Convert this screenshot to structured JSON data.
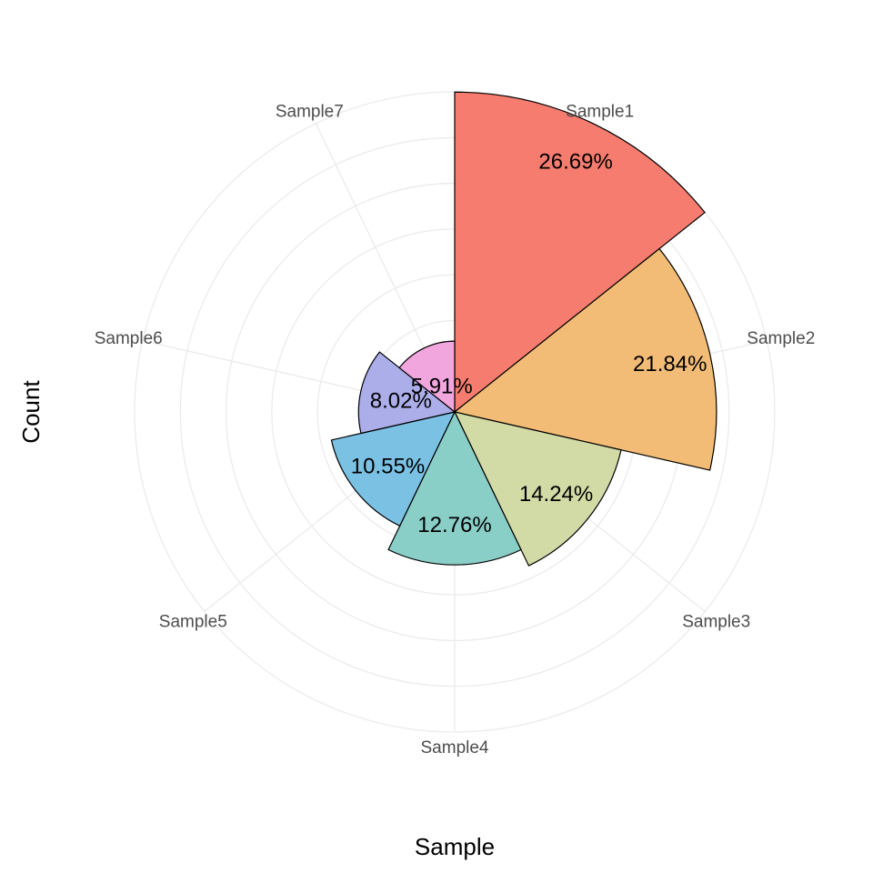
{
  "chart_data": {
    "type": "polar-bar",
    "xlabel": "Sample",
    "ylabel": "Count",
    "categories": [
      "Sample1",
      "Sample2",
      "Sample3",
      "Sample4",
      "Sample5",
      "Sample6",
      "Sample7"
    ],
    "values": [
      26.69,
      21.84,
      14.24,
      12.76,
      10.55,
      8.02,
      5.91
    ],
    "percent_labels": [
      "26.69%",
      "21.84%",
      "14.24%",
      "12.76%",
      "10.55%",
      "8.02%",
      "5.91%"
    ],
    "colors": [
      "#F67C6F",
      "#F2BC76",
      "#D2DAA6",
      "#89CEC7",
      "#7BC1E3",
      "#ABAEE8",
      "#F1A6DD"
    ],
    "grid": true,
    "legend": "none"
  }
}
